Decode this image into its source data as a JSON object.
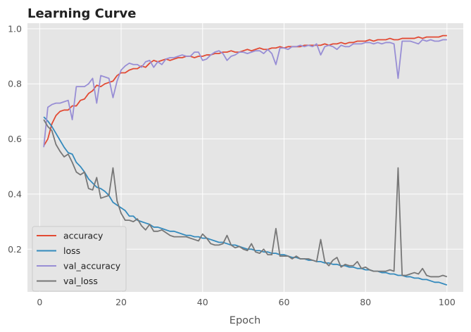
{
  "chart_data": {
    "type": "line",
    "title": "Learning Curve",
    "xlabel": "Epoch",
    "ylabel": "",
    "xlim": [
      -3,
      104
    ],
    "ylim": [
      0.045,
      1.02
    ],
    "x_ticks": [
      0,
      20,
      40,
      60,
      80,
      100
    ],
    "y_ticks": [
      0.2,
      0.4,
      0.6,
      0.8,
      1.0
    ],
    "x_tick_labels": [
      "0",
      "20",
      "40",
      "60",
      "80",
      "100"
    ],
    "y_tick_labels": [
      "0.2",
      "0.4",
      "0.6",
      "0.8",
      "1.0"
    ],
    "grid": true,
    "background": "#e5e5e5",
    "legend_position": "lower-left",
    "x": [
      1,
      2,
      3,
      4,
      5,
      6,
      7,
      8,
      9,
      10,
      11,
      12,
      13,
      14,
      15,
      16,
      17,
      18,
      19,
      20,
      21,
      22,
      23,
      24,
      25,
      26,
      27,
      28,
      29,
      30,
      31,
      32,
      33,
      34,
      35,
      36,
      37,
      38,
      39,
      40,
      41,
      42,
      43,
      44,
      45,
      46,
      47,
      48,
      49,
      50,
      51,
      52,
      53,
      54,
      55,
      56,
      57,
      58,
      59,
      60,
      61,
      62,
      63,
      64,
      65,
      66,
      67,
      68,
      69,
      70,
      71,
      72,
      73,
      74,
      75,
      76,
      77,
      78,
      79,
      80,
      81,
      82,
      83,
      84,
      85,
      86,
      87,
      88,
      89,
      90,
      91,
      92,
      93,
      94,
      95,
      96,
      97,
      98,
      99,
      100
    ],
    "series": [
      {
        "name": "accuracy",
        "color": "#e24a33",
        "values": [
          0.575,
          0.6,
          0.655,
          0.685,
          0.7,
          0.705,
          0.705,
          0.72,
          0.72,
          0.74,
          0.745,
          0.765,
          0.775,
          0.795,
          0.79,
          0.8,
          0.805,
          0.81,
          0.83,
          0.84,
          0.84,
          0.85,
          0.855,
          0.855,
          0.865,
          0.86,
          0.875,
          0.885,
          0.88,
          0.885,
          0.89,
          0.885,
          0.89,
          0.895,
          0.895,
          0.9,
          0.9,
          0.895,
          0.9,
          0.9,
          0.905,
          0.905,
          0.91,
          0.91,
          0.915,
          0.915,
          0.92,
          0.915,
          0.915,
          0.92,
          0.925,
          0.92,
          0.925,
          0.93,
          0.925,
          0.925,
          0.93,
          0.93,
          0.935,
          0.93,
          0.935,
          0.935,
          0.935,
          0.935,
          0.94,
          0.94,
          0.94,
          0.94,
          0.94,
          0.945,
          0.94,
          0.945,
          0.945,
          0.95,
          0.945,
          0.95,
          0.95,
          0.955,
          0.955,
          0.955,
          0.96,
          0.955,
          0.96,
          0.96,
          0.96,
          0.965,
          0.96,
          0.96,
          0.965,
          0.965,
          0.965,
          0.965,
          0.97,
          0.965,
          0.97,
          0.97,
          0.97,
          0.97,
          0.975,
          0.975
        ]
      },
      {
        "name": "loss",
        "color": "#348abd",
        "values": [
          0.68,
          0.665,
          0.645,
          0.62,
          0.595,
          0.57,
          0.55,
          0.545,
          0.515,
          0.5,
          0.48,
          0.455,
          0.44,
          0.425,
          0.42,
          0.41,
          0.395,
          0.37,
          0.36,
          0.35,
          0.34,
          0.32,
          0.32,
          0.305,
          0.3,
          0.295,
          0.29,
          0.28,
          0.28,
          0.275,
          0.27,
          0.265,
          0.265,
          0.26,
          0.255,
          0.25,
          0.25,
          0.245,
          0.245,
          0.24,
          0.24,
          0.235,
          0.23,
          0.225,
          0.225,
          0.22,
          0.215,
          0.215,
          0.21,
          0.205,
          0.2,
          0.2,
          0.195,
          0.195,
          0.19,
          0.19,
          0.185,
          0.185,
          0.18,
          0.18,
          0.175,
          0.17,
          0.17,
          0.165,
          0.165,
          0.16,
          0.16,
          0.155,
          0.155,
          0.15,
          0.15,
          0.145,
          0.145,
          0.14,
          0.14,
          0.135,
          0.135,
          0.13,
          0.13,
          0.125,
          0.125,
          0.12,
          0.12,
          0.115,
          0.115,
          0.11,
          0.11,
          0.105,
          0.105,
          0.1,
          0.1,
          0.095,
          0.095,
          0.09,
          0.09,
          0.085,
          0.08,
          0.08,
          0.075,
          0.07
        ]
      },
      {
        "name": "val_accuracy",
        "color": "#988ed5",
        "values": [
          0.57,
          0.715,
          0.725,
          0.73,
          0.73,
          0.735,
          0.74,
          0.67,
          0.79,
          0.79,
          0.79,
          0.8,
          0.82,
          0.73,
          0.83,
          0.825,
          0.82,
          0.75,
          0.81,
          0.85,
          0.865,
          0.875,
          0.87,
          0.87,
          0.86,
          0.88,
          0.885,
          0.86,
          0.88,
          0.87,
          0.89,
          0.895,
          0.895,
          0.9,
          0.905,
          0.9,
          0.9,
          0.915,
          0.915,
          0.885,
          0.89,
          0.905,
          0.915,
          0.92,
          0.91,
          0.885,
          0.9,
          0.905,
          0.915,
          0.915,
          0.91,
          0.915,
          0.92,
          0.92,
          0.91,
          0.925,
          0.91,
          0.87,
          0.93,
          0.93,
          0.925,
          0.935,
          0.935,
          0.94,
          0.935,
          0.94,
          0.935,
          0.945,
          0.905,
          0.935,
          0.94,
          0.935,
          0.925,
          0.94,
          0.935,
          0.935,
          0.945,
          0.945,
          0.945,
          0.95,
          0.95,
          0.945,
          0.95,
          0.945,
          0.95,
          0.95,
          0.945,
          0.82,
          0.955,
          0.955,
          0.955,
          0.95,
          0.945,
          0.96,
          0.955,
          0.96,
          0.955,
          0.955,
          0.96,
          0.96
        ]
      },
      {
        "name": "val_loss",
        "color": "#777777",
        "values": [
          0.67,
          0.645,
          0.63,
          0.58,
          0.555,
          0.535,
          0.545,
          0.515,
          0.48,
          0.47,
          0.48,
          0.42,
          0.415,
          0.46,
          0.385,
          0.39,
          0.395,
          0.495,
          0.375,
          0.33,
          0.305,
          0.305,
          0.3,
          0.31,
          0.285,
          0.27,
          0.29,
          0.265,
          0.265,
          0.27,
          0.26,
          0.25,
          0.245,
          0.245,
          0.245,
          0.245,
          0.24,
          0.235,
          0.23,
          0.255,
          0.24,
          0.22,
          0.215,
          0.215,
          0.22,
          0.25,
          0.215,
          0.205,
          0.21,
          0.2,
          0.195,
          0.22,
          0.19,
          0.185,
          0.2,
          0.18,
          0.18,
          0.275,
          0.175,
          0.175,
          0.175,
          0.165,
          0.175,
          0.165,
          0.165,
          0.165,
          0.16,
          0.155,
          0.235,
          0.155,
          0.14,
          0.16,
          0.17,
          0.135,
          0.145,
          0.14,
          0.14,
          0.155,
          0.13,
          0.135,
          0.125,
          0.12,
          0.12,
          0.12,
          0.12,
          0.125,
          0.12,
          0.495,
          0.105,
          0.105,
          0.11,
          0.115,
          0.11,
          0.13,
          0.105,
          0.1,
          0.1,
          0.1,
          0.105,
          0.1
        ]
      }
    ]
  }
}
